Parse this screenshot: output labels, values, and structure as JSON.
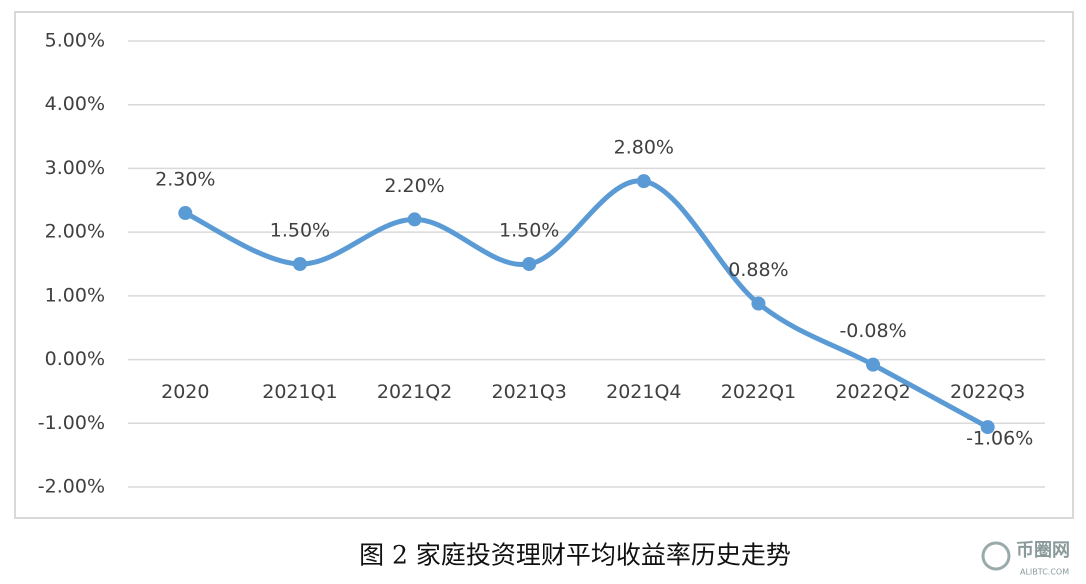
{
  "chart_data": {
    "type": "line",
    "caption": "图 2 家庭投资理财平均收益率历史走势",
    "watermark": "币圈网",
    "watermark_sub": "ALIBTC.COM",
    "categories": [
      "2020",
      "2021Q1",
      "2021Q2",
      "2021Q3",
      "2021Q4",
      "2022Q1",
      "2022Q2",
      "2022Q3"
    ],
    "series": [
      {
        "color": "#5b9bd5",
        "values": [
          2.3,
          1.5,
          2.2,
          1.5,
          2.8,
          0.88,
          -0.08,
          -1.06
        ],
        "value_labels": [
          "2.30%",
          "1.50%",
          "2.20%",
          "1.50%",
          "2.80%",
          "0.88%",
          "-0.08%",
          "-1.06%"
        ]
      }
    ],
    "ylim": [
      -2,
      5
    ],
    "yticks": [
      {
        "value": -2,
        "label": "-2.00%"
      },
      {
        "value": -1,
        "label": "-1.00%"
      },
      {
        "value": 0,
        "label": "0.00%"
      },
      {
        "value": 1,
        "label": "1.00%"
      },
      {
        "value": 2,
        "label": "2.00%"
      },
      {
        "value": 3,
        "label": "3.00%"
      },
      {
        "value": 4,
        "label": "4.00%"
      },
      {
        "value": 5,
        "label": "5.00%"
      }
    ],
    "grid": true,
    "smooth": true
  }
}
